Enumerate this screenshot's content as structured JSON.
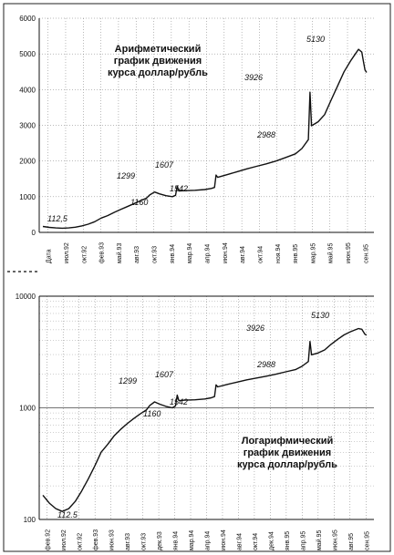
{
  "chart_data": [
    {
      "type": "line",
      "title": "Арифметический график движения курса доллар/рубль",
      "title_lines": [
        "Арифметический",
        "график движения",
        "курса доллар/рубль"
      ],
      "scale": "linear",
      "ylim": [
        0,
        6000
      ],
      "yticks": [
        "0",
        "1000",
        "2000",
        "3000",
        "4000",
        "5000",
        "6000"
      ],
      "xticks": [
        "Дата",
        "июл.92",
        "окт.92",
        "фев.93",
        "май.93",
        "авг.93",
        "окт.93",
        "янв.94",
        "мар.94",
        "апр.94",
        "июн.94",
        "авг.94",
        "окт.94",
        "ноя.94",
        "янв.95",
        "мар.95",
        "май.95",
        "июн.95",
        "сен.95"
      ],
      "annotations": [
        "112,5",
        "1299",
        "1160",
        "1607",
        "1542",
        "3926",
        "2988",
        "5130"
      ],
      "grid": true
    },
    {
      "type": "line",
      "title": "Логарифмический график движения курса доллар/рубль",
      "title_lines": [
        "Логарифмический",
        "график движения",
        "курса доллар/рубль"
      ],
      "scale": "log",
      "ylim": [
        100,
        10000
      ],
      "yticks": [
        "100",
        "1000",
        "10000"
      ],
      "xticks": [
        "фев.92",
        "июл.92",
        "окт.92",
        "фев.93",
        "июн.93",
        "авг.93",
        "окт.93",
        "дек.93",
        "янв.94",
        "мар.94",
        "апр.94",
        "июн.94",
        "авг.94",
        "окт.94",
        "дек.94",
        "янв.95",
        "апр.95",
        "май.95",
        "июн.95",
        "авг.95",
        "сен.95"
      ],
      "annotations": [
        "112.5",
        "1299",
        "1160",
        "1607",
        "1542",
        "3926",
        "2988",
        "5130"
      ],
      "grid": true
    }
  ],
  "series": [
    [
      0.0,
      165
    ],
    [
      0.02,
      140
    ],
    [
      0.04,
      125
    ],
    [
      0.06,
      118
    ],
    [
      0.08,
      125
    ],
    [
      0.1,
      145
    ],
    [
      0.12,
      180
    ],
    [
      0.14,
      230
    ],
    [
      0.16,
      300
    ],
    [
      0.18,
      400
    ],
    [
      0.2,
      470
    ],
    [
      0.22,
      560
    ],
    [
      0.24,
      640
    ],
    [
      0.26,
      720
    ],
    [
      0.28,
      800
    ],
    [
      0.3,
      880
    ],
    [
      0.32,
      960
    ],
    [
      0.33,
      1050
    ],
    [
      0.345,
      1130
    ],
    [
      0.36,
      1080
    ],
    [
      0.38,
      1030
    ],
    [
      0.4,
      1000
    ],
    [
      0.41,
      1040
    ],
    [
      0.415,
      1299
    ],
    [
      0.42,
      1160
    ],
    [
      0.44,
      1170
    ],
    [
      0.47,
      1180
    ],
    [
      0.5,
      1200
    ],
    [
      0.52,
      1230
    ],
    [
      0.53,
      1260
    ],
    [
      0.535,
      1607
    ],
    [
      0.54,
      1542
    ],
    [
      0.57,
      1620
    ],
    [
      0.6,
      1700
    ],
    [
      0.63,
      1780
    ],
    [
      0.66,
      1850
    ],
    [
      0.69,
      1920
    ],
    [
      0.72,
      2000
    ],
    [
      0.75,
      2100
    ],
    [
      0.78,
      2200
    ],
    [
      0.8,
      2350
    ],
    [
      0.82,
      2600
    ],
    [
      0.825,
      3926
    ],
    [
      0.83,
      2988
    ],
    [
      0.85,
      3100
    ],
    [
      0.87,
      3300
    ],
    [
      0.89,
      3700
    ],
    [
      0.91,
      4100
    ],
    [
      0.93,
      4500
    ],
    [
      0.95,
      4800
    ],
    [
      0.965,
      5000
    ],
    [
      0.975,
      5130
    ],
    [
      0.985,
      5050
    ],
    [
      0.99,
      4800
    ],
    [
      0.995,
      4550
    ],
    [
      1.0,
      4480
    ]
  ]
}
